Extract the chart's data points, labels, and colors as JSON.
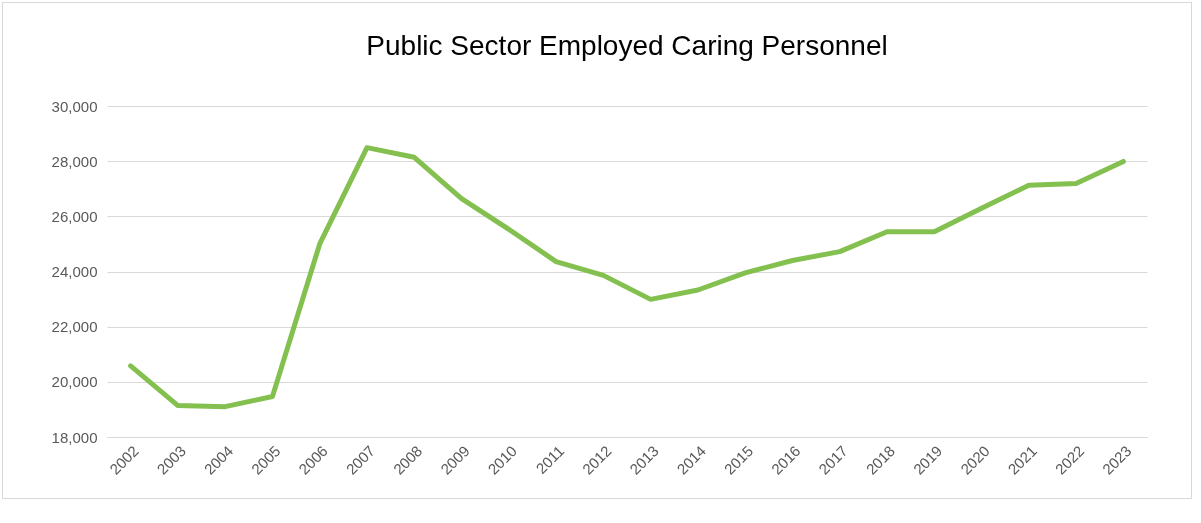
{
  "chart_data": {
    "type": "line",
    "title": "Public Sector Employed Caring Personnel",
    "categories": [
      "2002",
      "2003",
      "2004",
      "2005",
      "2006",
      "2007",
      "2008",
      "2009",
      "2010",
      "2011",
      "2012",
      "2013",
      "2014",
      "2015",
      "2016",
      "2017",
      "2018",
      "2019",
      "2020",
      "2021",
      "2022",
      "2023"
    ],
    "series": [
      {
        "color": "#84c04f",
        "values": [
          20580,
          19140,
          19100,
          19470,
          25000,
          28490,
          28140,
          26640,
          25530,
          24360,
          23860,
          22990,
          23330,
          23950,
          24400,
          24720,
          25440,
          25440,
          26290,
          27130,
          27190,
          27990
        ]
      }
    ],
    "ylim": [
      18000,
      30000
    ],
    "yticks": [
      {
        "value": 18000,
        "label": "18,000"
      },
      {
        "value": 20000,
        "label": "20,000"
      },
      {
        "value": 22000,
        "label": "22,000"
      },
      {
        "value": 24000,
        "label": "24,000"
      },
      {
        "value": 26000,
        "label": "26,000"
      },
      {
        "value": 28000,
        "label": "28,000"
      },
      {
        "value": 30000,
        "label": "30,000"
      }
    ],
    "grid": "y",
    "marker": "none",
    "line_style": "solid"
  }
}
